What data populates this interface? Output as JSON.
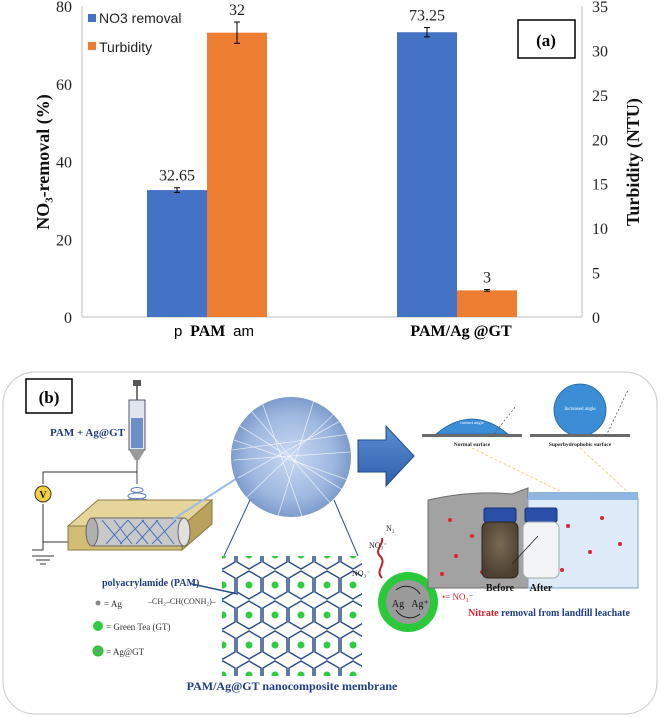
{
  "chart_data": {
    "type": "bar",
    "panel_label": "(a)",
    "categories": [
      "PAM",
      "PAM/Ag @GT"
    ],
    "series": [
      {
        "name": "NO3 removal",
        "axis": "left",
        "color": "#4472C4",
        "values": [
          32.65,
          73.25
        ],
        "labels": [
          "32.65",
          "73.25"
        ],
        "errors": [
          0.6,
          1.2
        ]
      },
      {
        "name": "Turbidity",
        "axis": "right",
        "color": "#ED7D31",
        "values": [
          32,
          3
        ],
        "labels": [
          "32",
          "3"
        ],
        "errors": [
          1.2,
          0.1
        ]
      }
    ],
    "ylabel": "NO₃-removal (%)",
    "y2label": "Turbidity (NTU)",
    "ylim": [
      0,
      80
    ],
    "y2lim": [
      0,
      35
    ],
    "yticks": [
      "0",
      "20",
      "40",
      "60",
      "80"
    ],
    "y2ticks": [
      "0",
      "5",
      "10",
      "15",
      "20",
      "25",
      "30",
      "35"
    ],
    "legend_position": "top-left"
  },
  "category_labels": {
    "cat1_pre": "p",
    "cat1_main": "PAM",
    "cat1_post": "am",
    "cat2": "PAM/Ag @GT"
  },
  "diagram_b": {
    "panel_label": "(b)",
    "syringe_label": "PAM + Ag@GT",
    "voltage_label": "V",
    "contact_normal_inner": "Normal",
    "contact_normal_inner2": "contact angle",
    "contact_normal_caption": "Normal surface",
    "contact_super_inner": "Increased angle",
    "contact_super_caption": "Superhydrophobic surface",
    "n2_label": "N₂",
    "no3_label_top": "NO₃⁻",
    "no3_label_left": "NO₃⁻",
    "ag_label": "Ag",
    "ag_plus_label": "Ag⁺",
    "nitrate_key": "•= NO₃⁻",
    "before_label": "Before",
    "after_label": "After",
    "polymer_label": "polyacrylamide (PAM)",
    "monomer_formula": "–CH₂–CH(CONH₂)–",
    "legend_ag": "= Ag",
    "legend_gt": "= Green Tea (GT)",
    "legend_aggt": "= Ag@GT",
    "membrane_caption": "PAM/Ag@GT nanocomposite membrane",
    "nitrate_word": "Nitrate",
    "caption_rest": " removal from landfill leachate"
  }
}
